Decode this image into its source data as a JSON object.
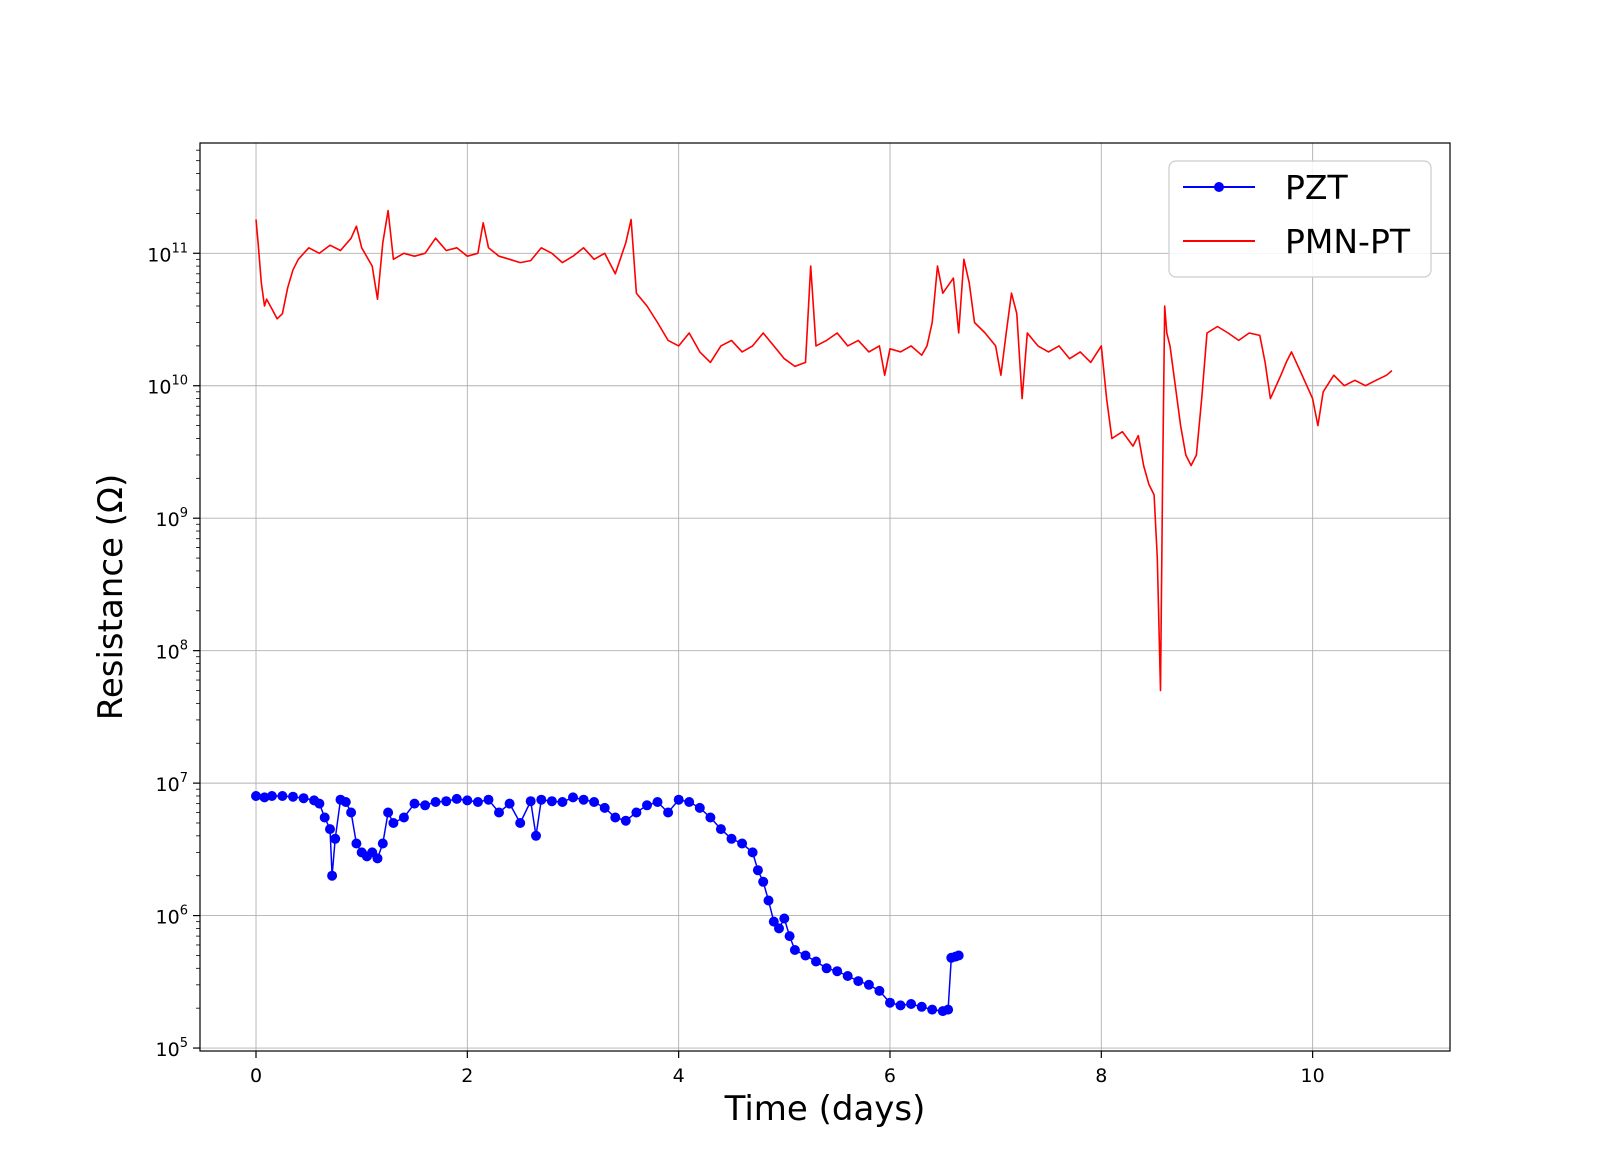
{
  "chart_data": {
    "type": "line",
    "title": "",
    "xlabel": "Time (days)",
    "ylabel": "Resistance (Ω)",
    "xlim": [
      -0.53,
      11.3
    ],
    "ylim": [
      95000,
      680000000000
    ],
    "yscale": "log",
    "x_ticks": [
      0,
      2,
      4,
      6,
      8,
      10
    ],
    "x_tick_labels": [
      "0",
      "2",
      "4",
      "6",
      "8",
      "10"
    ],
    "y_ticks": [
      100000,
      1000000,
      10000000,
      100000000,
      1000000000,
      10000000000,
      100000000000
    ],
    "y_tick_labels": [
      {
        "base": "10",
        "exp": "5"
      },
      {
        "base": "10",
        "exp": "6"
      },
      {
        "base": "10",
        "exp": "7"
      },
      {
        "base": "10",
        "exp": "8"
      },
      {
        "base": "10",
        "exp": "9"
      },
      {
        "base": "10",
        "exp": "10"
      },
      {
        "base": "10",
        "exp": "11"
      }
    ],
    "grid": true,
    "legend_position": "top-right",
    "series": [
      {
        "name": "PZT",
        "color": "#0000ff",
        "marker": "circle",
        "x": [
          0.0,
          0.08,
          0.15,
          0.25,
          0.35,
          0.45,
          0.55,
          0.6,
          0.65,
          0.7,
          0.72,
          0.75,
          0.8,
          0.85,
          0.9,
          0.95,
          1.0,
          1.05,
          1.1,
          1.15,
          1.2,
          1.25,
          1.3,
          1.4,
          1.5,
          1.6,
          1.7,
          1.8,
          1.9,
          2.0,
          2.1,
          2.2,
          2.3,
          2.4,
          2.5,
          2.6,
          2.65,
          2.7,
          2.8,
          2.9,
          3.0,
          3.1,
          3.2,
          3.3,
          3.4,
          3.5,
          3.6,
          3.7,
          3.8,
          3.9,
          4.0,
          4.1,
          4.2,
          4.3,
          4.4,
          4.5,
          4.6,
          4.7,
          4.75,
          4.8,
          4.85,
          4.9,
          4.95,
          5.0,
          5.05,
          5.1,
          5.2,
          5.3,
          5.4,
          5.5,
          5.6,
          5.7,
          5.8,
          5.9,
          6.0,
          6.1,
          6.2,
          6.3,
          6.4,
          6.5,
          6.55,
          6.58,
          6.62,
          6.65
        ],
        "y": [
          8000000,
          7800000,
          8000000,
          8000000,
          7900000,
          7700000,
          7400000,
          7000000,
          5500000,
          4500000,
          2000000,
          3800000,
          7500000,
          7200000,
          6000000,
          3500000,
          3000000,
          2800000,
          3000000,
          2700000,
          3500000,
          6000000,
          5000000,
          5500000,
          7000000,
          6800000,
          7200000,
          7300000,
          7600000,
          7400000,
          7200000,
          7500000,
          6000000,
          7000000,
          5000000,
          7300000,
          4000000,
          7500000,
          7300000,
          7200000,
          7800000,
          7500000,
          7200000,
          6500000,
          5500000,
          5200000,
          6000000,
          6800000,
          7200000,
          6000000,
          7500000,
          7200000,
          6500000,
          5500000,
          4500000,
          3800000,
          3500000,
          3000000,
          2200000,
          1800000,
          1300000,
          900000,
          800000,
          950000,
          700000,
          550000,
          500000,
          450000,
          400000,
          380000,
          350000,
          320000,
          300000,
          270000,
          220000,
          210000,
          215000,
          205000,
          195000,
          190000,
          195000,
          480000,
          490000,
          500000
        ]
      },
      {
        "name": "PMN-PT",
        "color": "#ff0000",
        "marker": "none",
        "x": [
          0.0,
          0.02,
          0.05,
          0.08,
          0.1,
          0.15,
          0.2,
          0.25,
          0.3,
          0.35,
          0.4,
          0.5,
          0.6,
          0.7,
          0.8,
          0.9,
          0.95,
          1.0,
          1.1,
          1.15,
          1.2,
          1.25,
          1.3,
          1.4,
          1.5,
          1.6,
          1.7,
          1.8,
          1.9,
          2.0,
          2.1,
          2.15,
          2.2,
          2.3,
          2.4,
          2.5,
          2.6,
          2.7,
          2.8,
          2.9,
          3.0,
          3.1,
          3.2,
          3.3,
          3.4,
          3.5,
          3.55,
          3.6,
          3.7,
          3.8,
          3.9,
          4.0,
          4.1,
          4.2,
          4.3,
          4.4,
          4.5,
          4.6,
          4.7,
          4.8,
          4.9,
          5.0,
          5.1,
          5.2,
          5.25,
          5.3,
          5.4,
          5.5,
          5.6,
          5.7,
          5.8,
          5.9,
          5.95,
          6.0,
          6.1,
          6.2,
          6.3,
          6.35,
          6.4,
          6.45,
          6.5,
          6.6,
          6.65,
          6.7,
          6.75,
          6.8,
          6.9,
          7.0,
          7.05,
          7.1,
          7.15,
          7.2,
          7.25,
          7.3,
          7.4,
          7.5,
          7.6,
          7.7,
          7.8,
          7.9,
          8.0,
          8.05,
          8.1,
          8.2,
          8.3,
          8.35,
          8.4,
          8.45,
          8.5,
          8.53,
          8.56,
          8.58,
          8.6,
          8.62,
          8.65,
          8.7,
          8.75,
          8.8,
          8.85,
          8.9,
          8.95,
          9.0,
          9.1,
          9.2,
          9.3,
          9.4,
          9.5,
          9.55,
          9.6,
          9.7,
          9.75,
          9.8,
          9.9,
          10.0,
          10.05,
          10.1,
          10.2,
          10.3,
          10.4,
          10.5,
          10.6,
          10.7,
          10.75
        ],
        "y": [
          180000000000,
          120000000000,
          60000000000,
          40000000000,
          45000000000,
          38000000000,
          32000000000,
          35000000000,
          55000000000,
          75000000000,
          90000000000,
          110000000000,
          100000000000,
          115000000000,
          105000000000,
          130000000000,
          160000000000,
          110000000000,
          80000000000,
          45000000000,
          120000000000,
          210000000000,
          90000000000,
          100000000000,
          95000000000,
          100000000000,
          130000000000,
          105000000000,
          110000000000,
          95000000000,
          100000000000,
          170000000000,
          110000000000,
          95000000000,
          90000000000,
          85000000000,
          88000000000,
          110000000000,
          100000000000,
          85000000000,
          95000000000,
          110000000000,
          90000000000,
          100000000000,
          70000000000,
          120000000000,
          180000000000,
          50000000000,
          40000000000,
          30000000000,
          22000000000,
          20000000000,
          25000000000,
          18000000000,
          15000000000,
          20000000000,
          22000000000,
          18000000000,
          20000000000,
          25000000000,
          20000000000,
          16000000000,
          14000000000,
          15000000000,
          80000000000,
          20000000000,
          22000000000,
          25000000000,
          20000000000,
          22000000000,
          18000000000,
          20000000000,
          12000000000,
          19000000000,
          18000000000,
          20000000000,
          17000000000,
          20000000000,
          30000000000,
          80000000000,
          50000000000,
          65000000000,
          25000000000,
          90000000000,
          60000000000,
          30000000000,
          25000000000,
          20000000000,
          12000000000,
          25000000000,
          50000000000,
          35000000000,
          8000000000,
          25000000000,
          20000000000,
          18000000000,
          20000000000,
          16000000000,
          18000000000,
          15000000000,
          20000000000,
          8000000000,
          4000000000,
          4500000000,
          3500000000,
          4200000000,
          2500000000,
          1800000000,
          1500000000,
          500000000,
          50000000,
          2000000000,
          40000000000,
          25000000000,
          20000000000,
          10000000000,
          5000000000,
          3000000000,
          2500000000,
          3000000000,
          8000000000,
          25000000000,
          28000000000,
          25000000000,
          22000000000,
          25000000000,
          24000000000,
          15000000000,
          8000000000,
          12000000000,
          15000000000,
          18000000000,
          12000000000,
          8000000000,
          5000000000,
          9000000000,
          12000000000,
          10000000000,
          11000000000,
          10000000000,
          11000000000,
          12000000000,
          13000000000
        ]
      }
    ]
  }
}
